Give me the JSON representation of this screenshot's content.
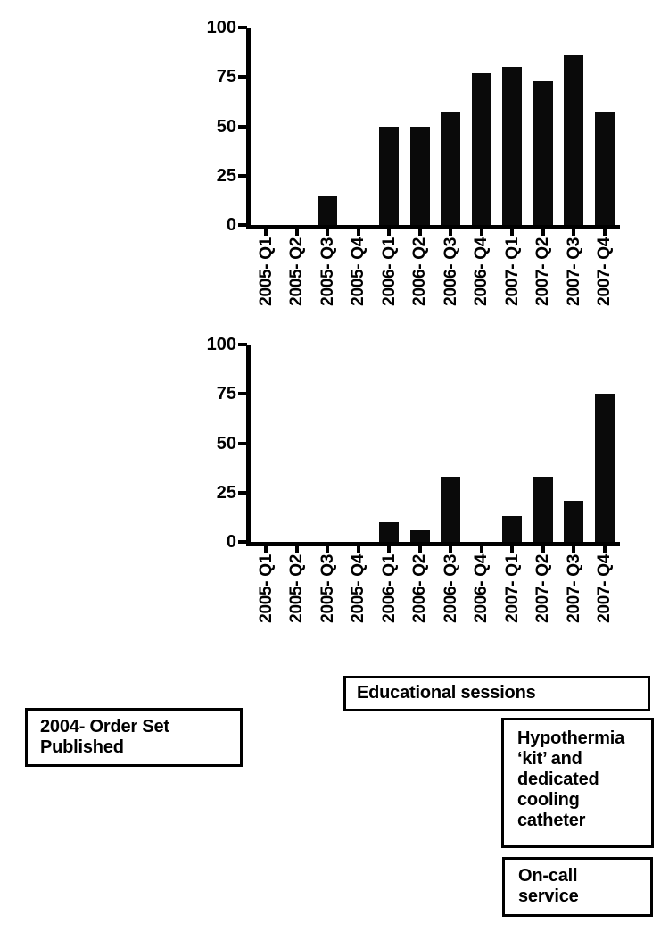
{
  "colors": {
    "background": "#ffffff",
    "bar": "#0a0a0a",
    "axis": "#000000",
    "text": "#000000"
  },
  "chart_data": [
    {
      "type": "bar",
      "position": "top",
      "categories": [
        "2005- Q1",
        "2005- Q2",
        "2005- Q3",
        "2005- Q4",
        "2006- Q1",
        "2006- Q2",
        "2006- Q3",
        "2006- Q4",
        "2007- Q1",
        "2007- Q2",
        "2007- Q3",
        "2007- Q4"
      ],
      "values": [
        0,
        0,
        15,
        0,
        50,
        50,
        57,
        77,
        80,
        73,
        86,
        57
      ],
      "title": "",
      "xlabel": "",
      "ylabel": "",
      "ylim": [
        0,
        100
      ],
      "yticks": [
        0,
        25,
        50,
        75,
        100
      ],
      "grid": false,
      "legend": "none",
      "bar_color": "#0a0a0a"
    },
    {
      "type": "bar",
      "position": "bottom",
      "categories": [
        "2005- Q1",
        "2005- Q2",
        "2005- Q3",
        "2005- Q4",
        "2006- Q1",
        "2006- Q2",
        "2006- Q3",
        "2006- Q4",
        "2007- Q1",
        "2007- Q2",
        "2007- Q3",
        "2007- Q4"
      ],
      "values": [
        0,
        0,
        0,
        0,
        10,
        6,
        33,
        0,
        13,
        33,
        21,
        75
      ],
      "title": "",
      "xlabel": "",
      "ylabel": "",
      "ylim": [
        0,
        100
      ],
      "yticks": [
        0,
        25,
        50,
        75,
        100
      ],
      "grid": false,
      "legend": "none",
      "bar_color": "#0a0a0a"
    }
  ],
  "annotations": {
    "order_set": {
      "lines": [
        "2004- Order Set",
        "Published"
      ]
    },
    "educational": {
      "lines": [
        "Educational sessions"
      ]
    },
    "hypothermia": {
      "lines": [
        "Hypothermia",
        "‘kit’ and",
        "dedicated",
        "cooling",
        "catheter"
      ]
    },
    "on_call": {
      "lines": [
        "On-call",
        "service"
      ]
    }
  }
}
